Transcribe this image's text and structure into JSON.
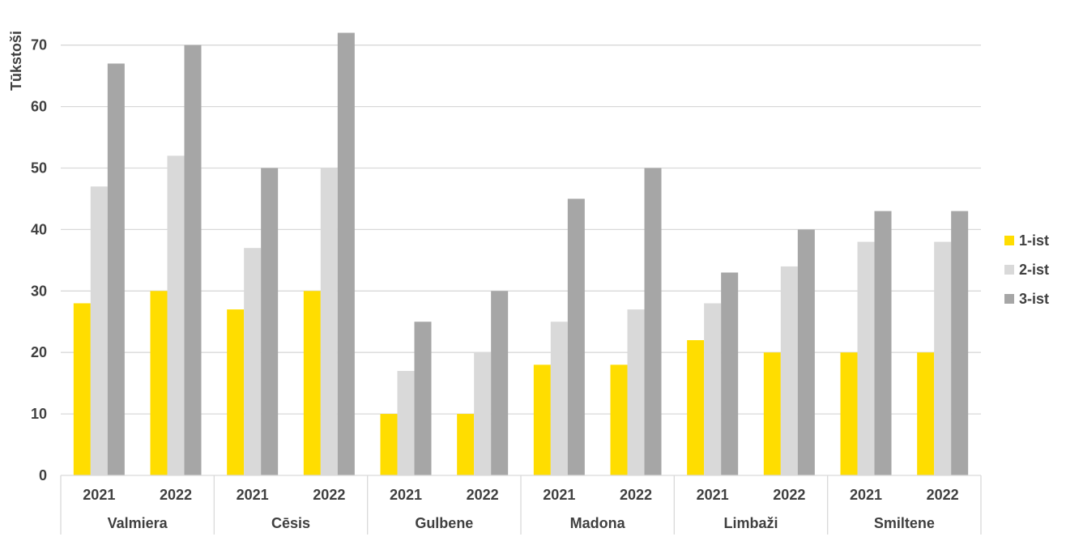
{
  "chart_data": {
    "type": "bar",
    "title": "",
    "ylabel": "Tūkstoši",
    "ylim": [
      0,
      70
    ],
    "yticks": [
      0,
      10,
      20,
      30,
      40,
      50,
      60,
      70
    ],
    "grid": true,
    "legend_position": "right",
    "colors": [
      "#FFDD00",
      "#D9D9D9",
      "#A6A6A6"
    ],
    "groups": [
      {
        "name": "Valmiera",
        "years": [
          "2021",
          "2022"
        ]
      },
      {
        "name": "Cēsis",
        "years": [
          "2021",
          "2022"
        ]
      },
      {
        "name": "Gulbene",
        "years": [
          "2021",
          "2022"
        ]
      },
      {
        "name": "Madona",
        "years": [
          "2021",
          "2022"
        ]
      },
      {
        "name": "Limbaži",
        "years": [
          "2021",
          "2022"
        ]
      },
      {
        "name": "Smiltene",
        "years": [
          "2021",
          "2022"
        ]
      }
    ],
    "series": [
      {
        "name": "1-ist",
        "values": [
          28,
          30,
          27,
          30,
          10,
          10,
          18,
          18,
          22,
          20,
          20,
          20
        ]
      },
      {
        "name": "2-ist",
        "values": [
          47,
          52,
          37,
          50,
          17,
          20,
          25,
          27,
          28,
          34,
          38,
          38
        ]
      },
      {
        "name": "3-ist",
        "values": [
          67,
          70,
          50,
          72,
          25,
          30,
          45,
          50,
          33,
          40,
          43,
          43
        ]
      }
    ]
  }
}
